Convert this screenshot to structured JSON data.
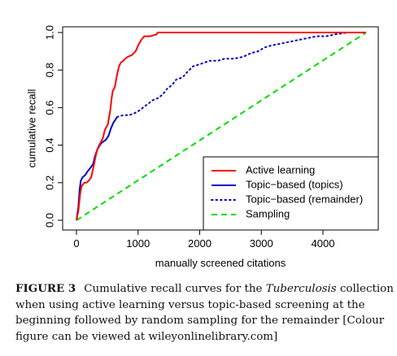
{
  "chart_data": {
    "type": "line",
    "xlabel": "manually screened citations",
    "ylabel": "cumulative recall",
    "xlim": [
      0,
      4700
    ],
    "ylim": [
      0,
      1
    ],
    "xticks": [
      "0",
      "1000",
      "2000",
      "3000",
      "4000"
    ],
    "yticks": [
      "0.0",
      "0.2",
      "0.4",
      "0.6",
      "0.8",
      "1.0"
    ],
    "grid": false,
    "legend_position": "bottom-right",
    "series": [
      {
        "name": "Active learning",
        "color": "#ff0000",
        "style": "solid",
        "points": [
          [
            0,
            0
          ],
          [
            30,
            0.05
          ],
          [
            60,
            0.14
          ],
          [
            80,
            0.18
          ],
          [
            100,
            0.19
          ],
          [
            130,
            0.2
          ],
          [
            160,
            0.2
          ],
          [
            200,
            0.21
          ],
          [
            240,
            0.23
          ],
          [
            280,
            0.29
          ],
          [
            310,
            0.34
          ],
          [
            340,
            0.38
          ],
          [
            370,
            0.4
          ],
          [
            400,
            0.42
          ],
          [
            430,
            0.44
          ],
          [
            460,
            0.48
          ],
          [
            490,
            0.5
          ],
          [
            510,
            0.51
          ],
          [
            530,
            0.55
          ],
          [
            550,
            0.59
          ],
          [
            570,
            0.65
          ],
          [
            590,
            0.69
          ],
          [
            610,
            0.7
          ],
          [
            630,
            0.72
          ],
          [
            650,
            0.76
          ],
          [
            670,
            0.79
          ],
          [
            690,
            0.82
          ],
          [
            720,
            0.84
          ],
          [
            760,
            0.85
          ],
          [
            790,
            0.86
          ],
          [
            830,
            0.87
          ],
          [
            900,
            0.88
          ],
          [
            960,
            0.9
          ],
          [
            1000,
            0.93
          ],
          [
            1050,
            0.96
          ],
          [
            1100,
            0.98
          ],
          [
            1200,
            0.98
          ],
          [
            1300,
            0.99
          ],
          [
            1320,
            1.0
          ],
          [
            4700,
            1.0
          ]
        ]
      },
      {
        "name": "Topic−based (topics)",
        "color": "#0000cc",
        "style": "solid",
        "points": [
          [
            0,
            0
          ],
          [
            30,
            0.07
          ],
          [
            50,
            0.16
          ],
          [
            70,
            0.21
          ],
          [
            100,
            0.23
          ],
          [
            140,
            0.24
          ],
          [
            180,
            0.26
          ],
          [
            230,
            0.28
          ],
          [
            270,
            0.3
          ],
          [
            300,
            0.34
          ],
          [
            330,
            0.37
          ],
          [
            360,
            0.39
          ],
          [
            400,
            0.41
          ],
          [
            440,
            0.42
          ],
          [
            480,
            0.43
          ],
          [
            520,
            0.45
          ],
          [
            560,
            0.49
          ],
          [
            600,
            0.52
          ],
          [
            640,
            0.54
          ],
          [
            660,
            0.55
          ]
        ]
      },
      {
        "name": "Topic−based (remainder)",
        "color": "#0000cc",
        "style": "dotted",
        "points": [
          [
            660,
            0.55
          ],
          [
            760,
            0.56
          ],
          [
            860,
            0.56
          ],
          [
            940,
            0.57
          ],
          [
            1000,
            0.58
          ],
          [
            1080,
            0.6
          ],
          [
            1160,
            0.62
          ],
          [
            1240,
            0.64
          ],
          [
            1320,
            0.65
          ],
          [
            1400,
            0.67
          ],
          [
            1470,
            0.7
          ],
          [
            1550,
            0.72
          ],
          [
            1620,
            0.75
          ],
          [
            1720,
            0.76
          ],
          [
            1800,
            0.79
          ],
          [
            1890,
            0.82
          ],
          [
            1990,
            0.83
          ],
          [
            2080,
            0.84
          ],
          [
            2160,
            0.85
          ],
          [
            2300,
            0.85
          ],
          [
            2400,
            0.86
          ],
          [
            2550,
            0.86
          ],
          [
            2700,
            0.87
          ],
          [
            2830,
            0.89
          ],
          [
            2950,
            0.9
          ],
          [
            3050,
            0.92
          ],
          [
            3150,
            0.93
          ],
          [
            3300,
            0.94
          ],
          [
            3450,
            0.95
          ],
          [
            3600,
            0.96
          ],
          [
            3750,
            0.97
          ],
          [
            3900,
            0.98
          ],
          [
            4050,
            0.98
          ],
          [
            4200,
            0.99
          ],
          [
            4400,
            1.0
          ],
          [
            4700,
            1.0
          ]
        ]
      },
      {
        "name": "Sampling",
        "color": "#00dd00",
        "style": "dashed",
        "points": [
          [
            0,
            0
          ],
          [
            4700,
            1.0
          ]
        ]
      }
    ]
  },
  "caption": {
    "label": "FIGURE 3",
    "text_before": "Cumulative recall curves for the ",
    "text_italic": "Tuberculosis",
    "text_after": " collection when using active learning versus topic-based screening at the beginning followed by random sampling for the remainder [Colour figure can be viewed at wileyonlinelibrary.com]"
  }
}
